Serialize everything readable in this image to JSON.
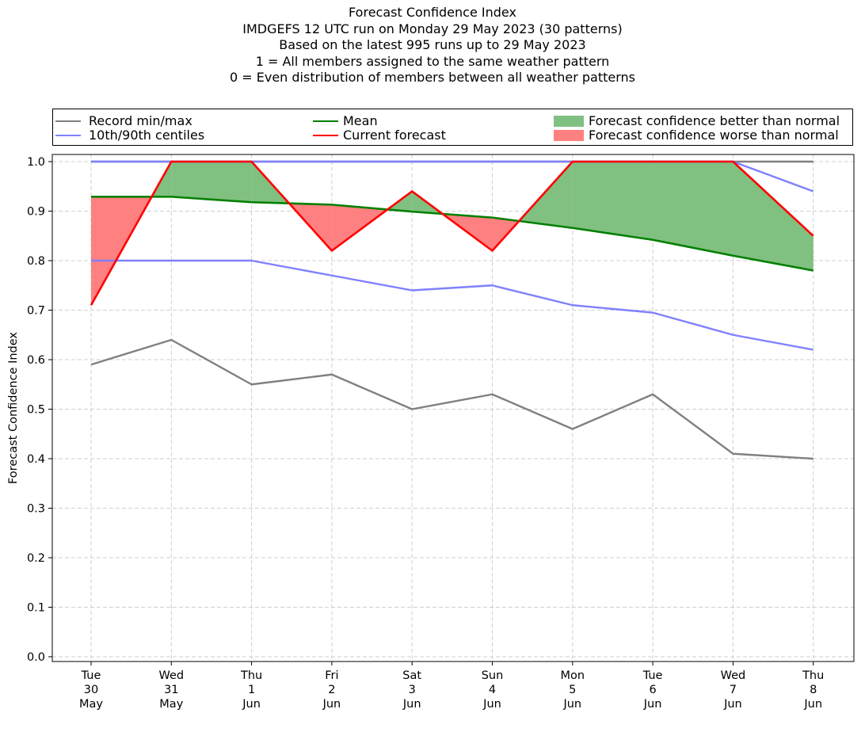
{
  "chart_data": {
    "type": "line",
    "title_lines": [
      "Forecast Confidence Index",
      "IMDGEFS 12 UTC run on Monday 29 May 2023 (30 patterns)",
      "Based on the latest 995 runs up to 29 May 2023",
      "1 = All members assigned to the same weather pattern",
      "0 = Even distribution of members between all weather patterns"
    ],
    "ylabel": "Forecast Confidence Index",
    "xlabel": "",
    "ylim": [
      0.0,
      1.0
    ],
    "yticks": [
      "0.0",
      "0.1",
      "0.2",
      "0.3",
      "0.4",
      "0.5",
      "0.6",
      "0.7",
      "0.8",
      "0.9",
      "1.0"
    ],
    "categories": [
      [
        "Tue",
        "30",
        "May"
      ],
      [
        "Wed",
        "31",
        "May"
      ],
      [
        "Thu",
        "1",
        "Jun"
      ],
      [
        "Fri",
        "2",
        "Jun"
      ],
      [
        "Sat",
        "3",
        "Jun"
      ],
      [
        "Sun",
        "4",
        "Jun"
      ],
      [
        "Mon",
        "5",
        "Jun"
      ],
      [
        "Tue",
        "6",
        "Jun"
      ],
      [
        "Wed",
        "7",
        "Jun"
      ],
      [
        "Thu",
        "8",
        "Jun"
      ]
    ],
    "grid": true,
    "legend": {
      "placement": "top",
      "entries": [
        {
          "label": "Record min/max",
          "kind": "line",
          "color": "#808080"
        },
        {
          "label": "10th/90th centiles",
          "kind": "line",
          "color": "#8080ff"
        },
        {
          "label": "Mean",
          "kind": "line",
          "color": "#008000"
        },
        {
          "label": "Current forecast",
          "kind": "line",
          "color": "#ff0000"
        },
        {
          "label": "Forecast confidence better than normal",
          "kind": "patch",
          "color": "#80c080"
        },
        {
          "label": "Forecast confidence worse than normal",
          "kind": "patch",
          "color": "#ff8080"
        }
      ]
    },
    "series": [
      {
        "name": "Record min",
        "role": "record-min",
        "color": "#808080",
        "values": [
          0.59,
          0.64,
          0.55,
          0.57,
          0.5,
          0.53,
          0.46,
          0.53,
          0.41,
          0.4
        ]
      },
      {
        "name": "Record max",
        "role": "record-max",
        "color": "#808080",
        "values": [
          1.0,
          1.0,
          1.0,
          1.0,
          1.0,
          1.0,
          1.0,
          1.0,
          1.0,
          1.0
        ]
      },
      {
        "name": "10th centile",
        "role": "p10",
        "color": "#8080ff",
        "values": [
          0.8,
          0.8,
          0.8,
          0.77,
          0.74,
          0.75,
          0.71,
          0.695,
          0.65,
          0.62
        ]
      },
      {
        "name": "90th centile",
        "role": "p90",
        "color": "#8080ff",
        "values": [
          1.0,
          1.0,
          1.0,
          1.0,
          1.0,
          1.0,
          1.0,
          1.0,
          1.0,
          0.94
        ]
      },
      {
        "name": "Mean",
        "role": "mean",
        "color": "#008000",
        "values": [
          0.929,
          0.929,
          0.918,
          0.913,
          0.899,
          0.887,
          0.866,
          0.842,
          0.81,
          0.78
        ]
      },
      {
        "name": "Current forecast",
        "role": "forecast",
        "color": "#ff0000",
        "values": [
          0.71,
          1.0,
          1.0,
          0.82,
          0.94,
          0.82,
          1.0,
          1.0,
          1.0,
          0.85
        ]
      }
    ],
    "fill_better_color": "#80c080",
    "fill_worse_color": "#ff8080"
  }
}
